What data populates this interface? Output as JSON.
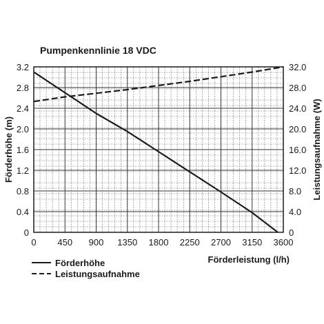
{
  "chart_data": {
    "type": "line",
    "title": "Pumpenkennlinie 18 VDC",
    "xlabel": "Förderleistung (l/h)",
    "ylabel_left": "Förderhöhe (m)",
    "ylabel_right": "Leistungsaufnahme (W)",
    "xlim": [
      0,
      3600
    ],
    "ylim_left": [
      0,
      3.2
    ],
    "ylim_right": [
      0,
      32
    ],
    "x_ticks": [
      "0",
      "450",
      "900",
      "1350",
      "1800",
      "2250",
      "2700",
      "3150",
      "3600"
    ],
    "y_left_ticks": [
      "0",
      "0.4",
      "0.8",
      "1.2",
      "1.6",
      "2.0",
      "2.4",
      "2.8",
      "3.2"
    ],
    "y_right_ticks": [
      "0",
      "4.0",
      "8.0",
      "12.0",
      "16.0",
      "20.0",
      "24.0",
      "28.0",
      "32.0"
    ],
    "grid": true,
    "legend_position": "bottom-left",
    "series": [
      {
        "name": "Förderhöhe",
        "axis": "left",
        "style": "solid",
        "color": "#1a1a1a",
        "x": [
          0,
          450,
          900,
          1350,
          1800,
          2250,
          2700,
          3150,
          3520
        ],
        "y": [
          3.1,
          2.7,
          2.3,
          1.95,
          1.56,
          1.17,
          0.78,
          0.38,
          0
        ]
      },
      {
        "name": "Leistungsaufnahme",
        "axis": "right",
        "style": "dashed",
        "color": "#1a1a1a",
        "x": [
          0,
          450,
          900,
          1350,
          1800,
          2250,
          2700,
          3150,
          3600
        ],
        "y": [
          25.3,
          26.2,
          26.9,
          27.6,
          28.4,
          29.2,
          30.1,
          31.0,
          32.0
        ]
      }
    ]
  }
}
